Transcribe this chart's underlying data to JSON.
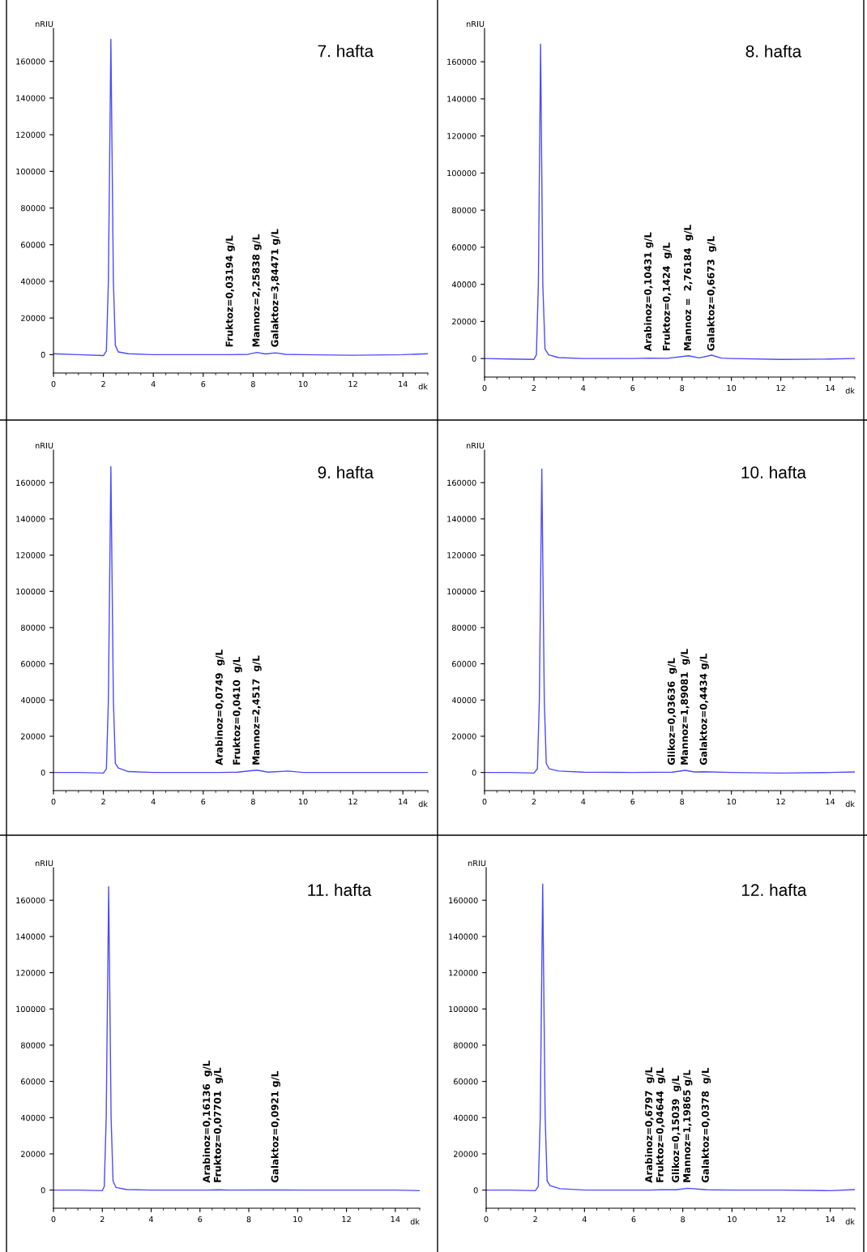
{
  "chart_data": [
    {
      "type": "line",
      "title": "7. hafta",
      "xlabel": "dk",
      "ylabel": "nRIU",
      "xlim": [
        0,
        15
      ],
      "ylim": [
        -10000,
        178000
      ],
      "xticks": [
        0,
        2,
        4,
        6,
        8,
        10,
        12,
        14
      ],
      "yticks": [
        0,
        20000,
        40000,
        60000,
        80000,
        100000,
        120000,
        140000,
        160000
      ],
      "series": [
        {
          "color": "#4b4bff",
          "x": [
            0,
            1,
            2,
            2.12,
            2.2,
            2.3,
            2.4,
            2.48,
            2.6,
            3,
            4,
            6,
            7,
            7.8,
            8.15,
            8.5,
            8.9,
            9.3,
            10,
            12,
            14,
            15
          ],
          "values": [
            500,
            0,
            -500,
            2000,
            40000,
            172000,
            40000,
            5000,
            1500,
            500,
            0,
            0,
            0,
            200,
            1200,
            400,
            1000,
            200,
            0,
            -300,
            0,
            500
          ]
        }
      ],
      "annotations": [
        {
          "text": "Fruktoz=0,03194 g/L",
          "x": 7.08,
          "y": 0
        },
        {
          "text": "Mannoz=2,25838 g/L",
          "x": 8.15,
          "y": 0
        },
        {
          "text": "Galaktoz=3,84471 g/L",
          "x": 8.9,
          "y": 0
        }
      ]
    },
    {
      "type": "line",
      "title": "8. hafta",
      "xlabel": "dk",
      "ylabel": "nRIU",
      "xlim": [
        0,
        15
      ],
      "ylim": [
        -10000,
        178000
      ],
      "xticks": [
        0,
        2,
        4,
        6,
        8,
        10,
        12,
        14
      ],
      "yticks": [
        0,
        20000,
        40000,
        60000,
        80000,
        100000,
        120000,
        140000,
        160000
      ],
      "series": [
        {
          "color": "#4b4bff",
          "x": [
            0,
            1,
            2,
            2.1,
            2.18,
            2.27,
            2.36,
            2.45,
            2.6,
            3,
            4,
            6,
            6.65,
            7.4,
            8.26,
            8.7,
            9.2,
            9.6,
            10,
            12,
            14,
            15
          ],
          "values": [
            0,
            -300,
            -500,
            2000,
            40000,
            169500,
            40000,
            5000,
            2000,
            500,
            0,
            0,
            200,
            100,
            1500,
            300,
            1800,
            200,
            0,
            -500,
            -300,
            0
          ]
        }
      ],
      "annotations": [
        {
          "text": "Arabinoz=0,10431 g/L",
          "x": 6.65,
          "y": 0
        },
        {
          "text": "Fruktoz=0,1424  g/L",
          "x": 7.4,
          "y": 0
        },
        {
          "text": "Mannoz =  2,76184  g/L",
          "x": 8.26,
          "y": 0
        },
        {
          "text": "Galaktoz=0,6673  g/L",
          "x": 9.2,
          "y": 0
        }
      ]
    },
    {
      "type": "line",
      "title": "9. hafta",
      "xlabel": "dk",
      "ylabel": "nRIU",
      "xlim": [
        0,
        15
      ],
      "ylim": [
        -10000,
        178000
      ],
      "xticks": [
        0,
        2,
        4,
        6,
        8,
        10,
        12,
        14
      ],
      "yticks": [
        0,
        20000,
        40000,
        60000,
        80000,
        100000,
        120000,
        140000,
        160000
      ],
      "series": [
        {
          "color": "#4b4bff",
          "x": [
            0,
            1,
            2,
            2.12,
            2.2,
            2.3,
            2.4,
            2.48,
            2.6,
            3,
            4,
            6,
            6.67,
            7.37,
            8.15,
            8.6,
            9.4,
            10,
            12,
            14,
            15
          ],
          "values": [
            0,
            0,
            -300,
            2000,
            40000,
            168800,
            40000,
            5000,
            2500,
            500,
            0,
            0,
            0,
            200,
            1300,
            200,
            800,
            0,
            0,
            0,
            0
          ]
        }
      ],
      "annotations": [
        {
          "text": "Arabinoz=0,0749  g/L",
          "x": 6.67,
          "y": 0
        },
        {
          "text": "Fruktoz=0,0410  g/L",
          "x": 7.37,
          "y": 0
        },
        {
          "text": "Mannoz=2,4517  g/L",
          "x": 8.15,
          "y": 0
        }
      ]
    },
    {
      "type": "line",
      "title": "10. hafta",
      "xlabel": "dk",
      "ylabel": "nRIU",
      "xlim": [
        0,
        15
      ],
      "ylim": [
        -10000,
        178000
      ],
      "xticks": [
        0,
        2,
        4,
        6,
        8,
        10,
        12,
        14
      ],
      "yticks": [
        0,
        20000,
        40000,
        60000,
        80000,
        100000,
        120000,
        140000,
        160000
      ],
      "series": [
        {
          "color": "#4b4bff",
          "x": [
            0,
            1,
            2,
            2.14,
            2.22,
            2.32,
            2.42,
            2.5,
            2.62,
            3,
            4,
            6,
            7.6,
            8.13,
            8.5,
            8.9,
            10,
            12,
            14,
            15
          ],
          "values": [
            0,
            0,
            -300,
            2000,
            40000,
            167500,
            40000,
            5000,
            2000,
            800,
            200,
            0,
            200,
            1200,
            300,
            400,
            0,
            -300,
            0,
            300
          ]
        }
      ],
      "annotations": [
        {
          "text": "Glikoz=0,03636  g/L",
          "x": 7.6,
          "y": 0
        },
        {
          "text": "Mannoz=1,89081  g/L",
          "x": 8.13,
          "y": 0
        },
        {
          "text": "Galaktoz=0,4434 g/L",
          "x": 8.9,
          "y": 0
        }
      ]
    },
    {
      "type": "line",
      "title": "11. hafta",
      "xlabel": "dk",
      "ylabel": "nRIU",
      "xlim": [
        0,
        15
      ],
      "ylim": [
        -10000,
        178000
      ],
      "xticks": [
        0,
        2,
        4,
        6,
        8,
        10,
        12,
        14
      ],
      "yticks": [
        0,
        20000,
        40000,
        60000,
        80000,
        100000,
        120000,
        140000,
        160000
      ],
      "series": [
        {
          "color": "#4b4bff",
          "x": [
            0,
            1,
            2,
            2.08,
            2.16,
            2.26,
            2.36,
            2.44,
            2.56,
            3,
            4,
            6,
            6.3,
            6.75,
            7.2,
            9.1,
            10,
            12,
            14,
            15
          ],
          "values": [
            0,
            0,
            -300,
            2000,
            40000,
            167500,
            40000,
            5000,
            1500,
            300,
            0,
            0,
            0,
            200,
            0,
            100,
            0,
            0,
            0,
            -300
          ]
        }
      ],
      "annotations": [
        {
          "text": "Arabinoz=0,16136  g/L",
          "x": 6.3,
          "y": 0
        },
        {
          "text": "Fruktoz=0,07701  g/L",
          "x": 6.75,
          "y": 0
        },
        {
          "text": "Galaktoz=0,0921 g/L",
          "x": 9.1,
          "y": 0
        }
      ]
    },
    {
      "type": "line",
      "title": "12. hafta",
      "xlabel": "dk",
      "ylabel": "nRIU",
      "xlim": [
        0,
        15
      ],
      "ylim": [
        -10000,
        178000
      ],
      "xticks": [
        0,
        2,
        4,
        6,
        8,
        10,
        12,
        14
      ],
      "yticks": [
        0,
        20000,
        40000,
        60000,
        80000,
        100000,
        120000,
        140000,
        160000
      ],
      "series": [
        {
          "color": "#4b4bff",
          "x": [
            0,
            1,
            2,
            2.12,
            2.2,
            2.3,
            2.4,
            2.48,
            2.6,
            3,
            4,
            6,
            6.65,
            7.1,
            7.74,
            8.2,
            8.95,
            10,
            12,
            14,
            15
          ],
          "values": [
            0,
            0,
            -300,
            2000,
            40000,
            169000,
            40000,
            5000,
            2500,
            800,
            0,
            0,
            0,
            200,
            200,
            1000,
            200,
            0,
            0,
            -300,
            300
          ]
        }
      ],
      "annotations": [
        {
          "text": "Arabinoz=0,6797  g/L",
          "x": 6.65,
          "y": 0
        },
        {
          "text": "Fruktoz=0,04644  g/L",
          "x": 7.1,
          "y": 0
        },
        {
          "text": "Glikoz=0,15039  g/L",
          "x": 7.74,
          "y": 0
        },
        {
          "text": "Mannoz=1,19865 g/L",
          "x": 8.2,
          "y": 0
        },
        {
          "text": "Galaktoz=0,0378  g/L",
          "x": 8.95,
          "y": 0
        }
      ]
    }
  ]
}
